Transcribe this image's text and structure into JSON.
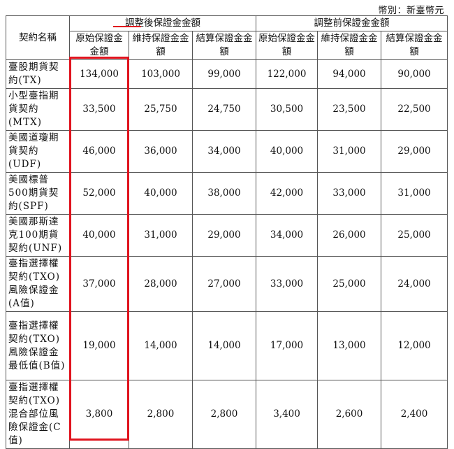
{
  "currency_label": "幣別：新臺幣元",
  "headers": {
    "name_col": "契約名稱",
    "after_group": "調整後保證金金額",
    "before_group": "調整前保證金金額",
    "sub_cols": [
      "原始保證金金額",
      "維持保證金金額",
      "結算保證金金額"
    ]
  },
  "rows": [
    {
      "name": "臺股期貨契約(TX)",
      "after": [
        "134,000",
        "103,000",
        "99,000"
      ],
      "before": [
        "122,000",
        "94,000",
        "90,000"
      ]
    },
    {
      "name": "小型臺指期貨契約(MTX)",
      "after": [
        "33,500",
        "25,750",
        "24,750"
      ],
      "before": [
        "30,500",
        "23,500",
        "22,500"
      ]
    },
    {
      "name": "美國道瓊期貨契約(UDF)",
      "after": [
        "46,000",
        "36,000",
        "34,000"
      ],
      "before": [
        "40,000",
        "31,000",
        "29,000"
      ]
    },
    {
      "name": "美國標普500期貨契約(SPF)",
      "after": [
        "52,000",
        "40,000",
        "38,000"
      ],
      "before": [
        "42,000",
        "33,000",
        "31,000"
      ]
    },
    {
      "name": "美國那斯達克100期貨契約(UNF)",
      "after": [
        "40,000",
        "31,000",
        "29,000"
      ],
      "before": [
        "34,000",
        "26,000",
        "25,000"
      ]
    },
    {
      "name": "臺指選擇權契約(TXO)風險保證金(A值)",
      "after": [
        "37,000",
        "28,000",
        "27,000"
      ],
      "before": [
        "33,000",
        "25,000",
        "24,000"
      ]
    },
    {
      "name": "臺指選擇權契約(TXO)風險保證金最低值(B值)",
      "after": [
        "19,000",
        "14,000",
        "14,000"
      ],
      "before": [
        "17,000",
        "13,000",
        "12,000"
      ]
    },
    {
      "name": "臺指選擇權契約(TXO)混合部位風險保證金(C值)",
      "after": [
        "3,800",
        "2,800",
        "2,800"
      ],
      "before": [
        "3,400",
        "2,600",
        "2,400"
      ]
    }
  ],
  "highlight_color": "#e0141e"
}
